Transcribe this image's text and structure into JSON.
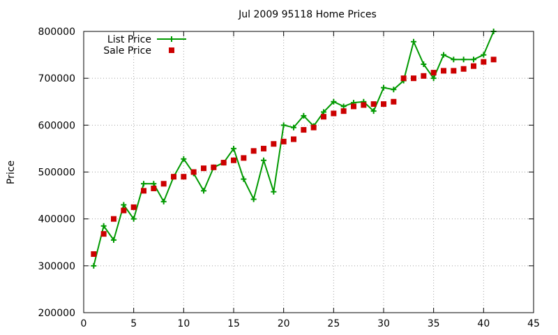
{
  "chart_data": {
    "type": "line",
    "title": "Jul 2009 95118 Home Prices",
    "xlabel": "",
    "ylabel": "Price",
    "xlim": [
      0,
      45
    ],
    "ylim": [
      200000,
      800000
    ],
    "x_ticks": [
      0,
      5,
      10,
      15,
      20,
      25,
      30,
      35,
      40,
      45
    ],
    "y_ticks": [
      200000,
      300000,
      400000,
      500000,
      600000,
      700000,
      800000
    ],
    "grid": true,
    "legend_position": "top-left",
    "colors": {
      "list": "#009900",
      "sale": "#cc0000"
    },
    "series": [
      {
        "name": "List Price",
        "style": "line+cross",
        "x": [
          1,
          2,
          3,
          4,
          5,
          6,
          7,
          8,
          9,
          10,
          11,
          12,
          13,
          14,
          15,
          16,
          17,
          18,
          19,
          20,
          21,
          22,
          23,
          24,
          25,
          26,
          27,
          28,
          29,
          30,
          31,
          32,
          33,
          34,
          35,
          36,
          37,
          38,
          39,
          40,
          41
        ],
        "values": [
          300000,
          385000,
          355000,
          430000,
          400000,
          475000,
          475000,
          437000,
          490000,
          528000,
          497000,
          460000,
          510000,
          520000,
          550000,
          485000,
          442000,
          525000,
          458000,
          600000,
          595000,
          620000,
          598000,
          628000,
          650000,
          640000,
          648000,
          650000,
          630000,
          680000,
          676000,
          695000,
          778000,
          730000,
          700000,
          750000,
          740000,
          740000,
          740000,
          750000,
          800000
        ]
      },
      {
        "name": "Sale Price",
        "style": "square",
        "x": [
          1,
          2,
          3,
          4,
          5,
          6,
          7,
          8,
          9,
          10,
          11,
          12,
          13,
          14,
          15,
          16,
          17,
          18,
          19,
          20,
          21,
          22,
          23,
          24,
          25,
          26,
          27,
          28,
          29,
          30,
          31,
          32,
          33,
          34,
          35,
          36,
          37,
          38,
          39,
          40,
          41
        ],
        "values": [
          325000,
          368000,
          400000,
          418000,
          425000,
          460000,
          465000,
          475000,
          490000,
          490000,
          500000,
          508000,
          510000,
          520000,
          525000,
          530000,
          545000,
          550000,
          560000,
          565000,
          570000,
          590000,
          595000,
          618000,
          625000,
          630000,
          640000,
          643000,
          645000,
          645000,
          650000,
          700000,
          700000,
          705000,
          712000,
          716000,
          716000,
          720000,
          726000,
          735000,
          740000
        ]
      }
    ]
  }
}
